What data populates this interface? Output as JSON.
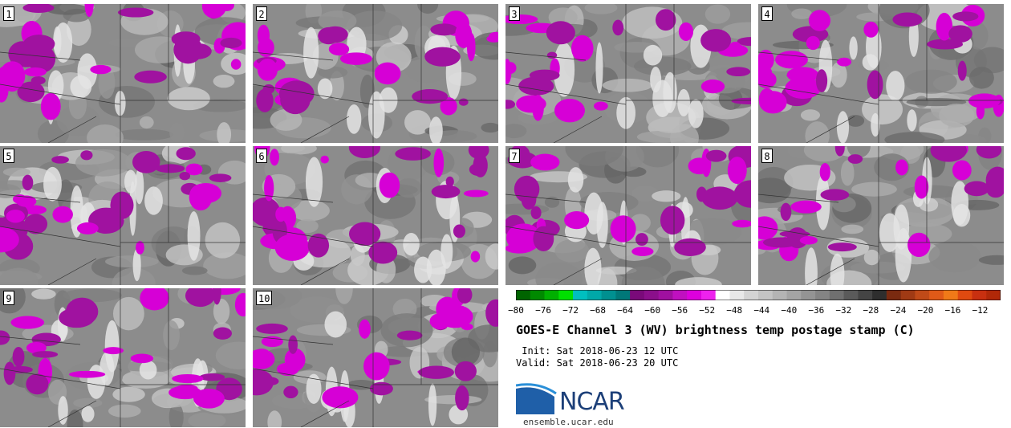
{
  "panels": [
    {
      "label": "1"
    },
    {
      "label": "2"
    },
    {
      "label": "3"
    },
    {
      "label": "4"
    },
    {
      "label": "5"
    },
    {
      "label": "6"
    },
    {
      "label": "7"
    },
    {
      "label": "8"
    },
    {
      "label": "9"
    },
    {
      "label": "10"
    }
  ],
  "colorbar": {
    "ticks": [
      "−80",
      "−76",
      "−72",
      "−68",
      "−64",
      "−60",
      "−56",
      "−52",
      "−48",
      "−44",
      "−40",
      "−36",
      "−32",
      "−28",
      "−24",
      "−20",
      "−16",
      "−12"
    ],
    "colors": [
      "#006400",
      "#008a00",
      "#00b000",
      "#00e000",
      "#00bfbf",
      "#00a8a8",
      "#009090",
      "#007878",
      "#7a0a7a",
      "#8b0f8b",
      "#a010a0",
      "#c010c0",
      "#dd00dd",
      "#ee22ee",
      "#ffffff",
      "#e8e8e8",
      "#d4d4d4",
      "#c4c4c4",
      "#b4b4b4",
      "#a4a4a4",
      "#949494",
      "#848484",
      "#707070",
      "#5a5a5a",
      "#444444",
      "#2e2e2e",
      "#7a2a10",
      "#a03a14",
      "#c04a18",
      "#e05a18",
      "#f07a18",
      "#e04a10",
      "#c83010",
      "#b02808"
    ]
  },
  "title": "GOES-E Channel 3 (WV) brightness temp postage stamp (C)",
  "init": " Init: Sat 2018-06-23 12 UTC",
  "valid": "Valid: Sat 2018-06-23 20 UTC",
  "logo": {
    "text": "NCAR",
    "url": "ensemble.ucar.edu"
  }
}
